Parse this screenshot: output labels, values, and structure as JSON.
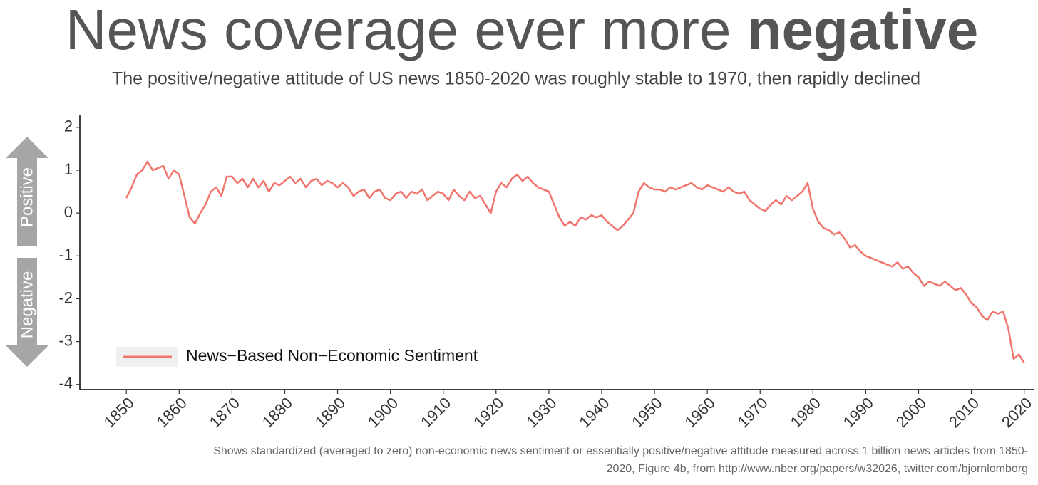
{
  "chart_data": {
    "type": "line",
    "title": "News coverage ever more",
    "title_emphasis": "negative",
    "subtitle": "The positive/negative attitude of US news 1850-2020 was roughly stable to 1970, then rapidly declined",
    "y_annotations": [
      "Positive",
      "Negative"
    ],
    "footnote_lines": [
      "Shows standardized (averaged to zero) non-economic news sentiment or essentially positive/negative attitude measured across 1 billion news articles from 1850-",
      "2020, Figure 4b, from http://www.nber.org/papers/w32026, twitter.com/bjornlomborg"
    ],
    "x": [
      1850,
      1851,
      1852,
      1853,
      1854,
      1855,
      1856,
      1857,
      1858,
      1859,
      1860,
      1861,
      1862,
      1863,
      1864,
      1865,
      1866,
      1867,
      1868,
      1869,
      1870,
      1871,
      1872,
      1873,
      1874,
      1875,
      1876,
      1877,
      1878,
      1879,
      1880,
      1881,
      1882,
      1883,
      1884,
      1885,
      1886,
      1887,
      1888,
      1889,
      1890,
      1891,
      1892,
      1893,
      1894,
      1895,
      1896,
      1897,
      1898,
      1899,
      1900,
      1901,
      1902,
      1903,
      1904,
      1905,
      1906,
      1907,
      1908,
      1909,
      1910,
      1911,
      1912,
      1913,
      1914,
      1915,
      1916,
      1917,
      1918,
      1919,
      1920,
      1921,
      1922,
      1923,
      1924,
      1925,
      1926,
      1927,
      1928,
      1929,
      1930,
      1931,
      1932,
      1933,
      1934,
      1935,
      1936,
      1937,
      1938,
      1939,
      1940,
      1941,
      1942,
      1943,
      1944,
      1945,
      1946,
      1947,
      1948,
      1949,
      1950,
      1951,
      1952,
      1953,
      1954,
      1955,
      1956,
      1957,
      1958,
      1959,
      1960,
      1961,
      1962,
      1963,
      1964,
      1965,
      1966,
      1967,
      1968,
      1969,
      1970,
      1971,
      1972,
      1973,
      1974,
      1975,
      1976,
      1977,
      1978,
      1979,
      1980,
      1981,
      1982,
      1983,
      1984,
      1985,
      1986,
      1987,
      1988,
      1989,
      1990,
      1991,
      1992,
      1993,
      1994,
      1995,
      1996,
      1997,
      1998,
      1999,
      2000,
      2001,
      2002,
      2003,
      2004,
      2005,
      2006,
      2007,
      2008,
      2009,
      2010,
      2011,
      2012,
      2013,
      2014,
      2015,
      2016,
      2017,
      2018,
      2019,
      2020
    ],
    "series": [
      {
        "name": "News−Based Non−Economic Sentiment",
        "color": "#f0766d",
        "values": [
          0.35,
          0.6,
          0.9,
          1.0,
          1.2,
          1.0,
          1.05,
          1.1,
          0.8,
          1.0,
          0.9,
          0.4,
          -0.1,
          -0.25,
          0.0,
          0.2,
          0.5,
          0.6,
          0.4,
          0.85,
          0.85,
          0.7,
          0.8,
          0.6,
          0.8,
          0.6,
          0.75,
          0.5,
          0.7,
          0.65,
          0.75,
          0.85,
          0.7,
          0.8,
          0.6,
          0.75,
          0.8,
          0.65,
          0.75,
          0.7,
          0.6,
          0.7,
          0.6,
          0.4,
          0.5,
          0.55,
          0.35,
          0.5,
          0.55,
          0.35,
          0.3,
          0.45,
          0.5,
          0.35,
          0.5,
          0.45,
          0.55,
          0.3,
          0.4,
          0.5,
          0.45,
          0.3,
          0.55,
          0.4,
          0.3,
          0.5,
          0.35,
          0.4,
          0.2,
          0.0,
          0.5,
          0.7,
          0.6,
          0.8,
          0.9,
          0.75,
          0.85,
          0.7,
          0.6,
          0.55,
          0.5,
          0.2,
          -0.1,
          -0.3,
          -0.2,
          -0.3,
          -0.1,
          -0.15,
          -0.05,
          -0.1,
          -0.05,
          -0.2,
          -0.3,
          -0.4,
          -0.3,
          -0.15,
          0.0,
          0.5,
          0.7,
          0.6,
          0.55,
          0.55,
          0.5,
          0.6,
          0.55,
          0.6,
          0.65,
          0.7,
          0.6,
          0.55,
          0.65,
          0.6,
          0.55,
          0.5,
          0.6,
          0.5,
          0.45,
          0.5,
          0.3,
          0.2,
          0.1,
          0.05,
          0.2,
          0.3,
          0.2,
          0.4,
          0.3,
          0.4,
          0.5,
          0.7,
          0.1,
          -0.2,
          -0.35,
          -0.4,
          -0.5,
          -0.45,
          -0.6,
          -0.8,
          -0.75,
          -0.9,
          -1.0,
          -1.05,
          -1.1,
          -1.15,
          -1.2,
          -1.25,
          -1.15,
          -1.3,
          -1.25,
          -1.4,
          -1.5,
          -1.7,
          -1.6,
          -1.65,
          -1.7,
          -1.6,
          -1.7,
          -1.8,
          -1.75,
          -1.9,
          -2.1,
          -2.2,
          -2.4,
          -2.5,
          -2.3,
          -2.35,
          -2.3,
          -2.7,
          -3.4,
          -3.3,
          -3.5
        ]
      }
    ],
    "xlim": [
      1841.2,
      2021.8
    ],
    "ylim": [
      -4.12,
      2.28
    ],
    "xticks": [
      1850,
      1860,
      1870,
      1880,
      1890,
      1900,
      1910,
      1920,
      1930,
      1940,
      1950,
      1960,
      1970,
      1980,
      1990,
      2000,
      2010,
      2020
    ],
    "yticks": [
      -4,
      -3,
      -2,
      -1,
      0,
      1,
      2
    ],
    "legend": "bottom-left"
  }
}
